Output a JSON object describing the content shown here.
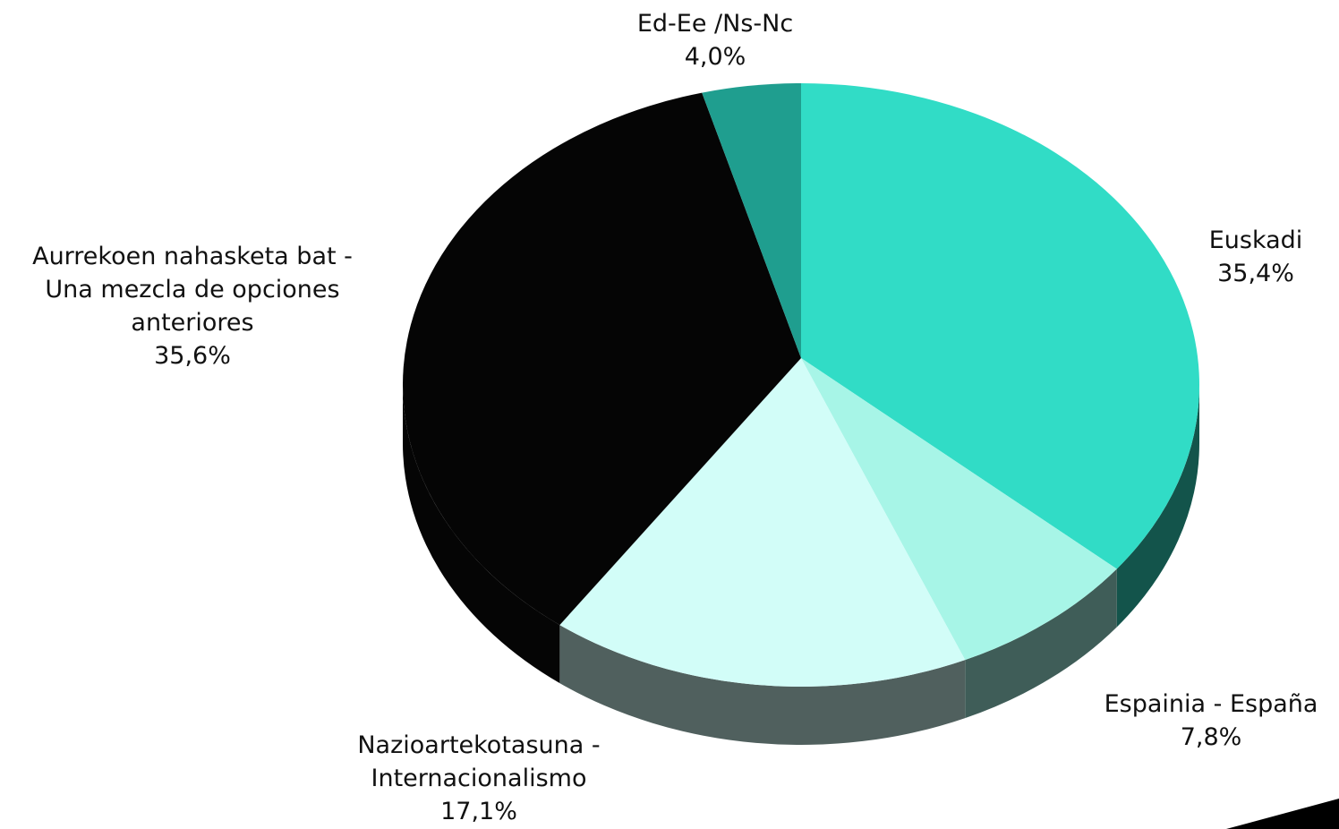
{
  "chart_data": {
    "type": "pie",
    "categories": [
      "Euskadi",
      "Espainia - España",
      "Nazioartekotasuna - Internacionalismo",
      "Aurrekoen nahasketa bat - Una mezcla de opciones anteriores",
      "Ed-Ee /Ns-Nc"
    ],
    "values": [
      35.4,
      7.8,
      17.1,
      35.6,
      4.0
    ],
    "value_labels": [
      "35,4%",
      "7,8%",
      "17,1%",
      "35,6%",
      "4,0%"
    ],
    "colors": [
      "#31dcc6",
      "#a7f5e7",
      "#d2fdf8",
      "#050505",
      "#1f9e8f"
    ]
  }
}
